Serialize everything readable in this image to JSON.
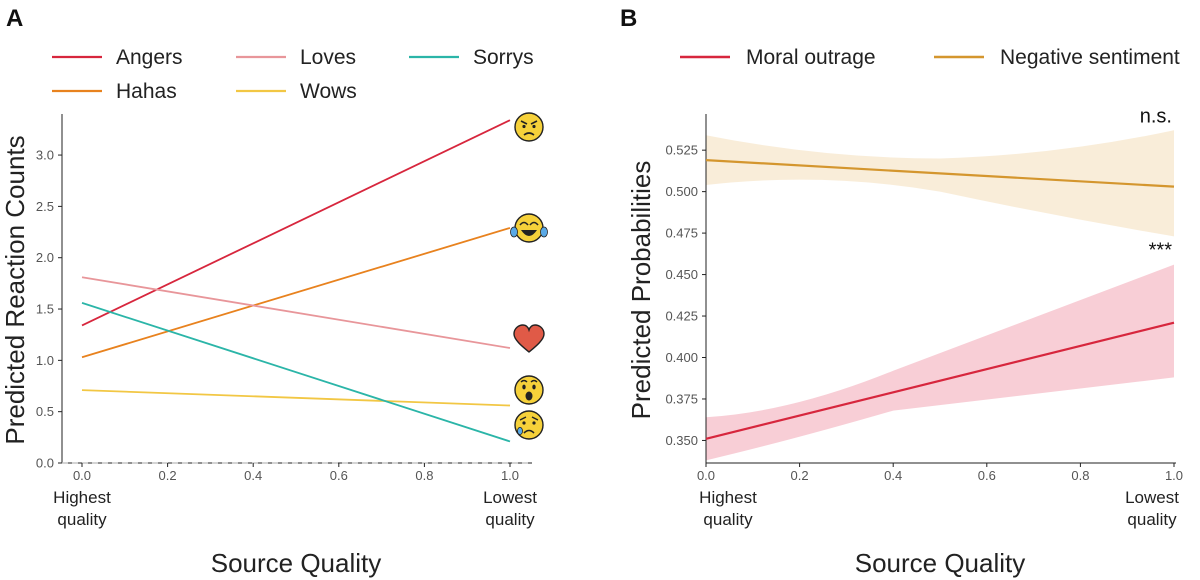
{
  "chart_data": [
    {
      "panel": "A",
      "type": "line",
      "xlabel": "Source Quality",
      "ylabel": "Predicted Reaction Counts",
      "xlim": [
        0.0,
        1.0
      ],
      "ylim": [
        0.0,
        3.4
      ],
      "x_ticks": [
        "0.0",
        "0.2",
        "0.4",
        "0.6",
        "0.8",
        "1.0"
      ],
      "x_ticks_values": [
        0.0,
        0.2,
        0.4,
        0.6,
        0.8,
        1.0
      ],
      "y_ticks": [
        "0.0",
        "0.5",
        "1.0",
        "1.5",
        "2.0",
        "2.5",
        "3.0"
      ],
      "y_ticks_values": [
        0.0,
        0.5,
        1.0,
        1.5,
        2.0,
        2.5,
        3.0
      ],
      "x_end_labels": {
        "left": [
          "Highest",
          "quality"
        ],
        "right": [
          "Lowest",
          "quality"
        ]
      },
      "reference_line": 0.0,
      "series": [
        {
          "name": "Angers",
          "color": "#d7263d",
          "x": [
            0.0,
            1.0
          ],
          "y": [
            1.34,
            3.34
          ],
          "icon": "angry-face-icon"
        },
        {
          "name": "Hahas",
          "color": "#e8821e",
          "x": [
            0.0,
            1.0
          ],
          "y": [
            1.03,
            2.29
          ],
          "icon": "laughing-face-icon"
        },
        {
          "name": "Loves",
          "color": "#e8969a",
          "x": [
            0.0,
            1.0
          ],
          "y": [
            1.81,
            1.12
          ],
          "icon": "heart-icon"
        },
        {
          "name": "Wows",
          "color": "#f2c744",
          "x": [
            0.0,
            1.0
          ],
          "y": [
            0.71,
            0.56
          ],
          "icon": "wow-face-icon"
        },
        {
          "name": "Sorrys",
          "color": "#2bb5a8",
          "x": [
            0.0,
            1.0
          ],
          "y": [
            1.56,
            0.21
          ],
          "icon": "sad-face-icon"
        }
      ],
      "legend": [
        [
          "Angers",
          "Loves",
          "Sorrys"
        ],
        [
          "Hahas",
          "Wows"
        ]
      ]
    },
    {
      "panel": "B",
      "type": "line",
      "xlabel": "Source Quality",
      "ylabel": "Predicted Probabilities",
      "xlim": [
        0.0,
        1.0
      ],
      "ylim": [
        0.3364,
        0.5468
      ],
      "x_ticks": [
        "0.0",
        "0.2",
        "0.4",
        "0.6",
        "0.8",
        "1.0"
      ],
      "x_ticks_values": [
        0.0,
        0.2,
        0.4,
        0.6,
        0.8,
        1.0
      ],
      "y_ticks": [
        "0.350",
        "0.375",
        "0.400",
        "0.425",
        "0.450",
        "0.475",
        "0.500",
        "0.525"
      ],
      "y_ticks_values": [
        0.35,
        0.375,
        0.4,
        0.425,
        0.45,
        0.475,
        0.5,
        0.525
      ],
      "x_end_labels": {
        "left": [
          "Highest",
          "quality"
        ],
        "right": [
          "Lowest",
          "quality"
        ]
      },
      "series": [
        {
          "name": "Moral outrage",
          "color": "#d7263d",
          "band_color": "#f7c6cf",
          "x": [
            0.0,
            1.0
          ],
          "y": [
            0.351,
            0.421
          ],
          "ci_upper": [
            0.364,
            0.456
          ],
          "ci_lower": [
            0.338,
            0.388
          ],
          "significance": "***"
        },
        {
          "name": "Negative sentiment",
          "color": "#d4962e",
          "band_color": "#f8ead2",
          "x": [
            0.0,
            1.0
          ],
          "y": [
            0.519,
            0.503
          ],
          "ci_upper": [
            0.534,
            0.537
          ],
          "ci_lower": [
            0.504,
            0.473
          ],
          "significance": "n.s."
        }
      ],
      "legend": [
        [
          "Moral outrage",
          "Negative sentiment"
        ]
      ]
    }
  ]
}
